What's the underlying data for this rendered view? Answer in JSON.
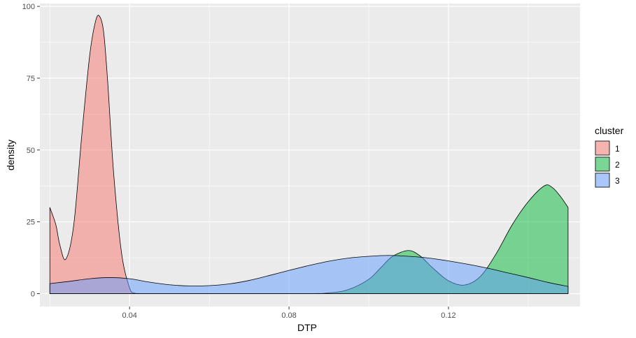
{
  "chart_data": {
    "type": "area",
    "subtype": "density",
    "title": "",
    "xlabel": "DTP",
    "ylabel": "density",
    "xlim": [
      0.0175,
      0.153
    ],
    "ylim": [
      -4.5,
      101
    ],
    "x_ticks": [
      0.04,
      0.08,
      0.12
    ],
    "x_tick_labels": [
      "0.04",
      "0.08",
      "0.12"
    ],
    "y_ticks": [
      0,
      25,
      50,
      75,
      100
    ],
    "y_tick_labels": [
      "0",
      "25",
      "50",
      "75",
      "100"
    ],
    "grid": true,
    "legend": {
      "title": "cluster",
      "position": "right"
    },
    "series": [
      {
        "name": "1",
        "color": "#F8766D",
        "x": [
          0.02,
          0.0215,
          0.0225,
          0.024,
          0.026,
          0.028,
          0.03,
          0.0315,
          0.0325,
          0.0335,
          0.0345,
          0.036,
          0.038,
          0.04,
          0.041,
          0.043,
          0.05,
          0.06,
          0.08,
          0.1,
          0.12,
          0.14,
          0.15
        ],
        "values": [
          30,
          24,
          17,
          12,
          24,
          55,
          83,
          95,
          96.5,
          91,
          74,
          42,
          14,
          2,
          0.3,
          0,
          0,
          0,
          0,
          0,
          0,
          0,
          0
        ]
      },
      {
        "name": "2",
        "color": "#00BA38",
        "x": [
          0.02,
          0.08,
          0.09,
          0.095,
          0.1,
          0.103,
          0.106,
          0.11,
          0.113,
          0.116,
          0.12,
          0.124,
          0.128,
          0.132,
          0.136,
          0.14,
          0.144,
          0.146,
          0.148,
          0.15
        ],
        "values": [
          0,
          0,
          0.3,
          1.5,
          5,
          9,
          13,
          15,
          13,
          9,
          4.5,
          3,
          6,
          14,
          24,
          32,
          37.5,
          37,
          34,
          30
        ]
      },
      {
        "name": "3",
        "color": "#619CFF",
        "x": [
          0.02,
          0.025,
          0.03,
          0.035,
          0.04,
          0.045,
          0.05,
          0.055,
          0.06,
          0.065,
          0.07,
          0.075,
          0.08,
          0.085,
          0.09,
          0.095,
          0.1,
          0.105,
          0.11,
          0.115,
          0.12,
          0.125,
          0.13,
          0.135,
          0.14,
          0.145,
          0.15
        ],
        "values": [
          3.5,
          4.3,
          5.2,
          5.6,
          5.2,
          4.0,
          3.1,
          2.7,
          2.8,
          3.4,
          4.6,
          6.3,
          8.1,
          9.8,
          11.3,
          12.4,
          13.0,
          13.3,
          13.0,
          12.4,
          11.4,
          10.2,
          8.8,
          7.2,
          5.6,
          3.9,
          2.5
        ]
      }
    ]
  }
}
